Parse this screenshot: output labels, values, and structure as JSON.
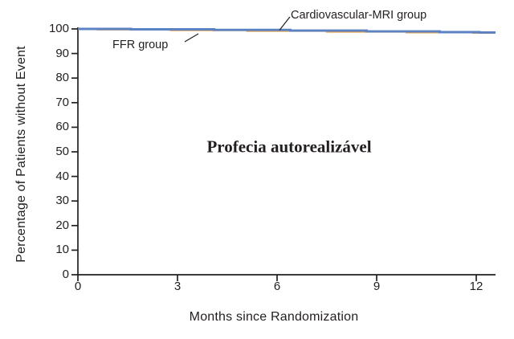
{
  "figure": {
    "annotation": "Profecia autorealizável",
    "series_labels": {
      "cmr": "Cardiovascular-MRI group",
      "ffr": "FFR group"
    }
  },
  "chart_data": {
    "type": "line",
    "subtype": "kaplan-meier-step",
    "title": "",
    "xlabel": "Months since Randomization",
    "ylabel": "Percentage of Patients without Event",
    "xlim": [
      0,
      12.58
    ],
    "ylim": [
      0,
      100
    ],
    "xticks": [
      0,
      3,
      6,
      9,
      12
    ],
    "yticks": [
      0,
      10,
      20,
      30,
      40,
      50,
      60,
      70,
      80,
      90,
      100
    ],
    "grid": false,
    "legend_position": "inline-labels",
    "axis_color": "#231f20",
    "annotation": "Profecia autorealizável",
    "series": [
      {
        "name": "FFR group",
        "color": "#e5a14c",
        "steps": [
          [
            0,
            100
          ],
          [
            0.6,
            99.8
          ],
          [
            2.8,
            99.5
          ],
          [
            5.1,
            99.2
          ],
          [
            7.5,
            98.9
          ],
          [
            9.9,
            98.6
          ],
          [
            11.9,
            98.45
          ]
        ]
      },
      {
        "name": "Cardiovascular-MRI group",
        "color": "#5b82c3",
        "steps": [
          [
            0,
            100
          ],
          [
            1.6,
            99.85
          ],
          [
            4.1,
            99.6
          ],
          [
            6.4,
            99.3
          ],
          [
            8.7,
            99.0
          ],
          [
            10.9,
            98.7
          ],
          [
            12.1,
            98.55
          ]
        ]
      }
    ]
  }
}
